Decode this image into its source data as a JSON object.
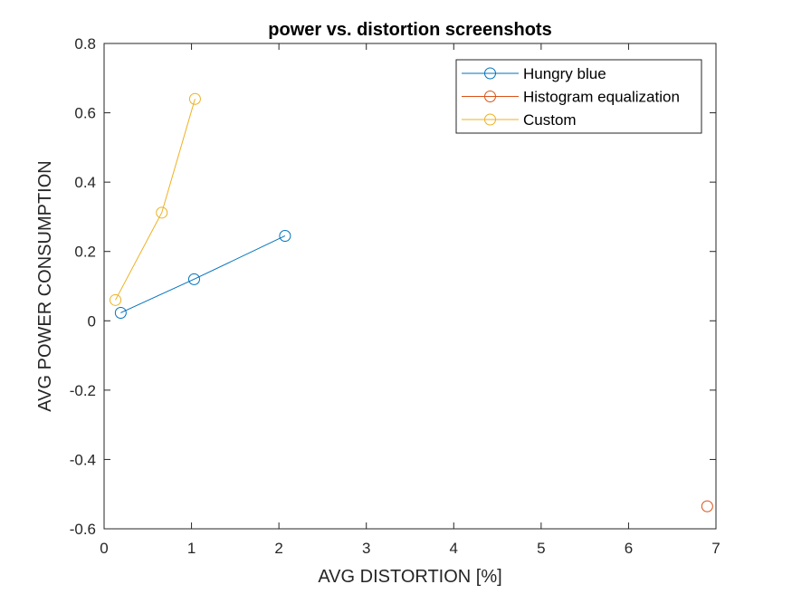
{
  "chart_data": {
    "type": "line",
    "title": "power vs. distortion screenshots",
    "xlabel": "AVG DISTORTION [%]",
    "ylabel": "AVG POWER CONSUMPTION",
    "xlim": [
      0,
      7
    ],
    "ylim": [
      -0.6,
      0.8
    ],
    "xticks": [
      "0",
      "1",
      "2",
      "3",
      "4",
      "5",
      "6",
      "7"
    ],
    "yticks": [
      "-0.6",
      "-0.4",
      "-0.2",
      "0",
      "0.2",
      "0.4",
      "0.6",
      "0.8"
    ],
    "grid": false,
    "legend_position": "top-right",
    "marker": "circle",
    "series": [
      {
        "name": "Hungry blue",
        "color": "#0072bd",
        "x": [
          0.19,
          1.03,
          2.07
        ],
        "y": [
          0.023,
          0.12,
          0.245
        ]
      },
      {
        "name": "Histogram equalization",
        "color": "#d95319",
        "x": [
          6.9
        ],
        "y": [
          -0.535
        ]
      },
      {
        "name": "Custom",
        "color": "#edb120",
        "x": [
          0.13,
          0.66,
          1.04
        ],
        "y": [
          0.06,
          0.312,
          0.64
        ]
      }
    ]
  }
}
